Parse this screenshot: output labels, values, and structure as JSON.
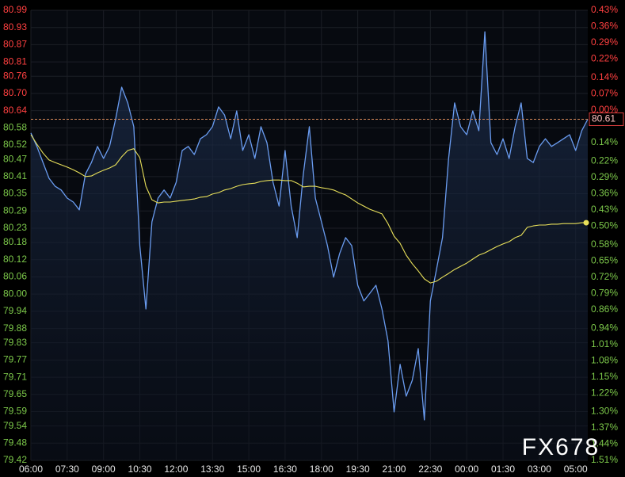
{
  "chart_data": {
    "type": "line",
    "watermark": "FX678",
    "last_price": 80.61,
    "up_color": "#ff4040",
    "down_color": "#7cc84a",
    "grid": true,
    "xlim": [
      0,
      92
    ],
    "xticks": [
      {
        "value": 0,
        "label": "06:00"
      },
      {
        "value": 6,
        "label": "07:30"
      },
      {
        "value": 12,
        "label": "09:00"
      },
      {
        "value": 18,
        "label": "10:30"
      },
      {
        "value": 24,
        "label": "12:00"
      },
      {
        "value": 30,
        "label": "13:30"
      },
      {
        "value": 36,
        "label": "15:00"
      },
      {
        "value": 42,
        "label": "16:30"
      },
      {
        "value": 48,
        "label": "18:00"
      },
      {
        "value": 54,
        "label": "19:30"
      },
      {
        "value": 60,
        "label": "21:00"
      },
      {
        "value": 66,
        "label": "22:30"
      },
      {
        "value": 72,
        "label": "00:00"
      },
      {
        "value": 78,
        "label": "01:30"
      },
      {
        "value": 84,
        "label": "03:00"
      },
      {
        "value": 90,
        "label": "05:00"
      }
    ],
    "ylim": [
      79.42,
      80.99
    ],
    "yticks": [
      80.99,
      80.93,
      80.87,
      80.81,
      80.76,
      {
        "value": 80.7,
        "label": "80.70"
      },
      80.64,
      80.58,
      80.52,
      80.47,
      80.41,
      80.35,
      80.29,
      80.23,
      80.18,
      80.12,
      80.06,
      {
        "value": 80.0,
        "label": "80.00"
      },
      79.94,
      79.88,
      79.83,
      79.77,
      79.71,
      79.65,
      79.59,
      79.54,
      79.48,
      79.42
    ],
    "y2lim": [
      -1.51,
      0.43
    ],
    "y2ticks": [
      {
        "value": 0.43,
        "label": "0.43%"
      },
      {
        "value": 0.36,
        "label": "0.36%"
      },
      {
        "value": 0.29,
        "label": "0.29%"
      },
      {
        "value": 0.22,
        "label": "0.22%"
      },
      {
        "value": 0.14,
        "label": "0.14%"
      },
      {
        "value": 0.07,
        "label": "0.07%"
      },
      {
        "value": 0,
        "label": "0.00%"
      },
      {
        "value": -0.14,
        "label": "0.14%"
      },
      {
        "value": -0.22,
        "label": "0.22%"
      },
      {
        "value": -0.29,
        "label": "0.29%"
      },
      {
        "value": -0.36,
        "label": "0.36%"
      },
      {
        "value": -0.43,
        "label": "0.43%"
      },
      {
        "value": -0.5,
        "label": "0.50%"
      },
      {
        "value": -0.58,
        "label": "0.58%"
      },
      {
        "value": -0.65,
        "label": "0.65%"
      },
      {
        "value": -0.72,
        "label": "0.72%"
      },
      {
        "value": -0.79,
        "label": "0.79%"
      },
      {
        "value": -0.86,
        "label": "0.86%"
      },
      {
        "value": -0.94,
        "label": "0.94%"
      },
      {
        "value": -1.01,
        "label": "1.01%"
      },
      {
        "value": -1.08,
        "label": "1.08%"
      },
      {
        "value": -1.15,
        "label": "1.15%"
      },
      {
        "value": -1.22,
        "label": "1.22%"
      },
      {
        "value": -1.3,
        "label": "1.30%"
      },
      {
        "value": -1.37,
        "label": "1.37%"
      },
      {
        "value": -1.44,
        "label": "1.44%"
      },
      {
        "value": -1.51,
        "label": "1.51%"
      }
    ],
    "series": [
      {
        "color": "#6a9cf0",
        "values": [
          80.562,
          80.515,
          80.459,
          80.404,
          80.376,
          80.363,
          80.335,
          80.321,
          80.294,
          80.418,
          80.459,
          80.515,
          80.473,
          80.515,
          80.611,
          80.722,
          80.667,
          80.584,
          80.169,
          79.948,
          80.252,
          80.335,
          80.363,
          80.335,
          80.39,
          80.501,
          80.515,
          80.487,
          80.542,
          80.556,
          80.584,
          80.653,
          80.625,
          80.542,
          80.639,
          80.501,
          80.556,
          80.473,
          80.584,
          80.528,
          80.39,
          80.307,
          80.501,
          80.307,
          80.197,
          80.418,
          80.584,
          80.335,
          80.252,
          80.169,
          80.059,
          80.141,
          80.197,
          80.169,
          80.031,
          79.976,
          80.003,
          80.031,
          79.948,
          79.837,
          79.589,
          79.755,
          79.644,
          79.699,
          79.81,
          79.561,
          79.976,
          80.086,
          80.197,
          80.473,
          80.667,
          80.584,
          80.556,
          80.639,
          80.57,
          80.915,
          80.528,
          80.487,
          80.542,
          80.473,
          80.584,
          80.667,
          80.473,
          80.459,
          80.515,
          80.542,
          80.515,
          80.528,
          80.542,
          80.556,
          80.501,
          80.57,
          80.61
        ]
      },
      {
        "color": "#e8e05a",
        "values": [
          80.556,
          80.523,
          80.492,
          80.468,
          80.459,
          80.451,
          80.443,
          80.434,
          80.423,
          80.41,
          80.412,
          80.423,
          80.432,
          80.44,
          80.451,
          80.479,
          80.501,
          80.507,
          80.476,
          80.376,
          80.329,
          80.318,
          80.321,
          80.321,
          80.324,
          80.327,
          80.329,
          80.332,
          80.338,
          80.34,
          80.349,
          80.354,
          80.363,
          80.368,
          80.376,
          80.382,
          80.385,
          80.387,
          80.393,
          80.396,
          80.398,
          80.398,
          80.396,
          80.396,
          80.387,
          80.374,
          80.376,
          80.376,
          80.371,
          80.368,
          80.363,
          80.354,
          80.346,
          80.332,
          80.318,
          80.307,
          80.296,
          80.288,
          80.28,
          80.246,
          80.202,
          80.177,
          80.136,
          80.106,
          80.081,
          80.053,
          80.039,
          80.045,
          80.059,
          80.072,
          80.086,
          80.097,
          80.108,
          80.122,
          80.136,
          80.144,
          80.155,
          80.166,
          80.175,
          80.183,
          80.197,
          80.205,
          80.233,
          80.238,
          80.241,
          80.241,
          80.244,
          80.244,
          80.246,
          80.246,
          80.246,
          80.249,
          80.249
        ]
      }
    ]
  }
}
